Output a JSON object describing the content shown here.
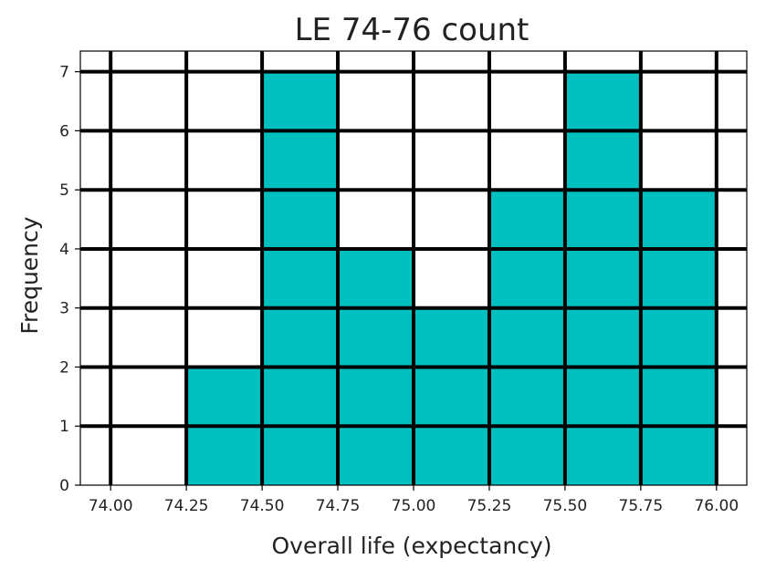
{
  "chart_data": {
    "type": "bar",
    "title": "LE 74-76 count",
    "xlabel": "Overall life (expectancy)",
    "ylabel": "Frequency",
    "bins": [
      {
        "start": 74.0,
        "end": 74.25,
        "count": 0
      },
      {
        "start": 74.25,
        "end": 74.5,
        "count": 2
      },
      {
        "start": 74.5,
        "end": 74.75,
        "count": 7
      },
      {
        "start": 74.75,
        "end": 75.0,
        "count": 4
      },
      {
        "start": 75.0,
        "end": 75.25,
        "count": 3
      },
      {
        "start": 75.25,
        "end": 75.5,
        "count": 5
      },
      {
        "start": 75.5,
        "end": 75.75,
        "count": 7
      },
      {
        "start": 75.75,
        "end": 76.0,
        "count": 5
      }
    ],
    "xlim": [
      73.9,
      76.1
    ],
    "ylim": [
      0,
      7.35
    ],
    "xticks": [
      "74.00",
      "74.25",
      "74.50",
      "74.75",
      "75.00",
      "75.25",
      "75.50",
      "75.75",
      "76.00"
    ],
    "yticks": [
      "0",
      "1",
      "2",
      "3",
      "4",
      "5",
      "6",
      "7"
    ],
    "grid": true,
    "bar_color": "#00bfbf",
    "grid_color": "#000000"
  }
}
